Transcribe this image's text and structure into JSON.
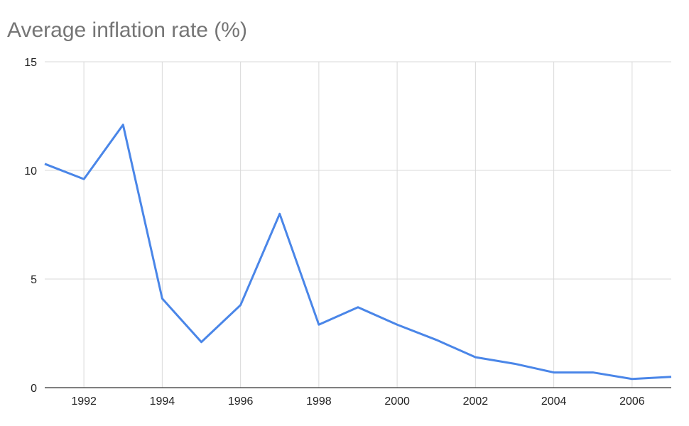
{
  "chart_data": {
    "type": "line",
    "title": "Average inflation rate (%)",
    "xlabel": "",
    "ylabel": "",
    "xlim": [
      1991,
      2007
    ],
    "ylim": [
      0,
      15
    ],
    "grid": true,
    "legend": "none",
    "x_ticks": [
      "1992",
      "1994",
      "1996",
      "1998",
      "2000",
      "2002",
      "2004",
      "2006"
    ],
    "y_ticks": [
      "0",
      "5",
      "10",
      "15"
    ],
    "series": [
      {
        "name": "Average inflation rate (%)",
        "color": "#4a86e8",
        "x": [
          1991,
          1992,
          1993,
          1994,
          1995,
          1996,
          1997,
          1998,
          1999,
          2000,
          2001,
          2002,
          2003,
          2004,
          2005,
          2006,
          2007
        ],
        "values": [
          10.3,
          9.6,
          12.1,
          4.1,
          2.1,
          3.8,
          8.0,
          2.9,
          3.7,
          2.9,
          2.2,
          1.4,
          1.1,
          0.7,
          0.7,
          0.4,
          0.5
        ]
      }
    ]
  }
}
